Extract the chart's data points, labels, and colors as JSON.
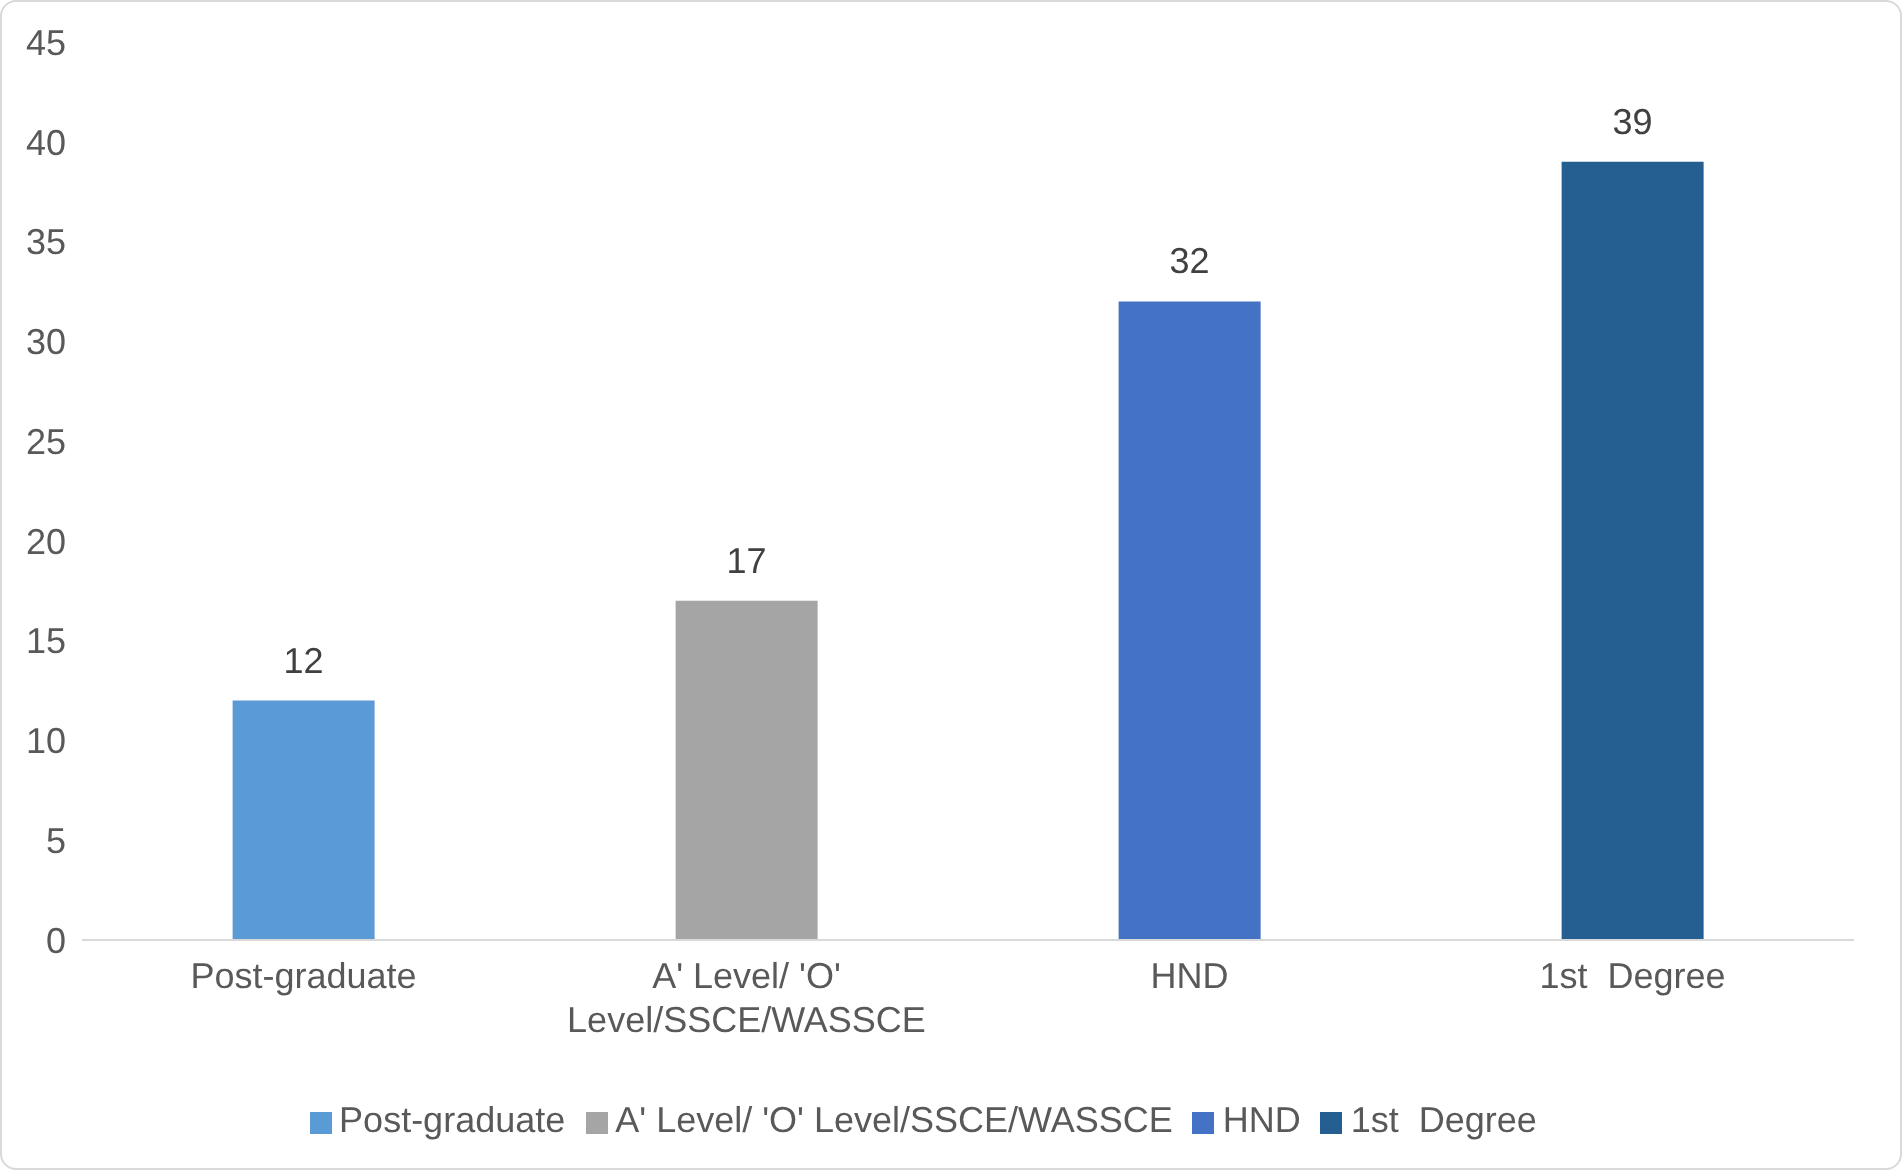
{
  "chart_data": {
    "type": "bar",
    "categories": [
      "Post-graduate",
      "A' Level/ 'O' Level/SSCE/WASSCE",
      "HND",
      "1st  Degree"
    ],
    "series": [
      {
        "name": "Post-graduate",
        "color": "#5b9bd5",
        "values": [
          12,
          null,
          null,
          null
        ]
      },
      {
        "name": "A' Level/ 'O' Level/SSCE/WASSCE",
        "color": "#a5a5a5",
        "values": [
          null,
          17,
          null,
          null
        ]
      },
      {
        "name": "HND",
        "color": "#4472c4",
        "values": [
          null,
          null,
          32,
          null
        ]
      },
      {
        "name": "1st  Degree",
        "color": "#255e91",
        "values": [
          null,
          null,
          null,
          39
        ]
      }
    ],
    "stacked": true,
    "ylim": [
      0,
      45
    ],
    "yticks": [
      0,
      5,
      10,
      15,
      20,
      25,
      30,
      35,
      40,
      45
    ],
    "data_labels": true,
    "legend": "bottom"
  }
}
